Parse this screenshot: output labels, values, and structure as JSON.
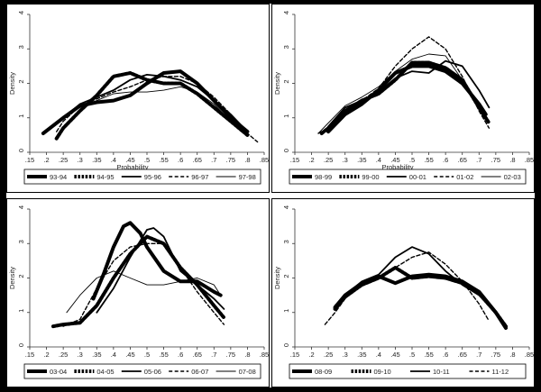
{
  "chart_data": [
    {
      "type": "line",
      "xlabel": "Probability",
      "ylabel": "Density",
      "xticks": [
        ".15",
        ".2",
        ".25",
        ".3",
        ".35",
        ".4",
        ".45",
        ".5",
        ".55",
        ".6",
        ".65",
        ".7",
        ".75",
        ".8",
        ".85"
      ],
      "yticks": [
        "0",
        "1",
        "2",
        "3",
        "4"
      ],
      "xlim": [
        0.15,
        0.85
      ],
      "ylim": [
        0,
        4
      ],
      "legend_position": "bottom",
      "series": [
        {
          "name": "93-94",
          "style": "thick-solid",
          "x": [
            0.19,
            0.25,
            0.3,
            0.35,
            0.4,
            0.45,
            0.5,
            0.55,
            0.6,
            0.65,
            0.7,
            0.75,
            0.8
          ],
          "y": [
            0.55,
            1.0,
            1.35,
            1.45,
            1.5,
            1.65,
            2.0,
            2.3,
            2.35,
            2.0,
            1.5,
            1.0,
            0.6
          ]
        },
        {
          "name": "94-95",
          "style": "thick-dotted",
          "x": [
            0.23,
            0.25,
            0.3,
            0.35,
            0.4,
            0.45,
            0.5,
            0.55,
            0.6,
            0.65,
            0.7,
            0.75,
            0.8
          ],
          "y": [
            0.4,
            0.7,
            1.2,
            1.65,
            2.2,
            2.3,
            2.1,
            2.0,
            2.0,
            1.7,
            1.3,
            0.9,
            0.5
          ]
        },
        {
          "name": "95-96",
          "style": "solid",
          "x": [
            0.2,
            0.25,
            0.3,
            0.35,
            0.4,
            0.45,
            0.5,
            0.55,
            0.6,
            0.65,
            0.7,
            0.75,
            0.8
          ],
          "y": [
            0.6,
            1.0,
            1.4,
            1.6,
            1.8,
            2.1,
            2.25,
            2.2,
            2.1,
            1.9,
            1.5,
            1.1,
            0.6
          ]
        },
        {
          "name": "96-97",
          "style": "dashed",
          "x": [
            0.23,
            0.25,
            0.3,
            0.35,
            0.4,
            0.45,
            0.5,
            0.55,
            0.6,
            0.65,
            0.7,
            0.75,
            0.8,
            0.83
          ],
          "y": [
            0.6,
            0.9,
            1.35,
            1.55,
            1.75,
            1.9,
            2.1,
            2.2,
            2.2,
            2.0,
            1.6,
            1.1,
            0.55,
            0.3
          ]
        },
        {
          "name": "97-98",
          "style": "thin",
          "x": [
            0.2,
            0.25,
            0.3,
            0.35,
            0.4,
            0.45,
            0.5,
            0.55,
            0.6,
            0.65,
            0.7,
            0.75,
            0.8
          ],
          "y": [
            0.6,
            1.0,
            1.3,
            1.5,
            1.7,
            1.75,
            1.75,
            1.8,
            1.9,
            1.75,
            1.4,
            0.9,
            0.55
          ]
        }
      ]
    },
    {
      "type": "line",
      "xlabel": "Probability",
      "ylabel": "Density",
      "xticks": [
        ".15",
        ".2",
        ".25",
        ".3",
        ".35",
        ".4",
        ".45",
        ".5",
        ".55",
        ".6",
        ".65",
        ".7",
        ".75",
        ".8",
        ".85"
      ],
      "yticks": [
        "0",
        "1",
        "2",
        "3",
        "4"
      ],
      "xlim": [
        0.15,
        0.85
      ],
      "ylim": [
        0,
        4
      ],
      "legend_position": "bottom",
      "series": [
        {
          "name": "98-99",
          "style": "thick-solid",
          "x": [
            0.25,
            0.3,
            0.35,
            0.4,
            0.45,
            0.5,
            0.55,
            0.6,
            0.65,
            0.7,
            0.72
          ],
          "y": [
            0.6,
            1.1,
            1.4,
            1.8,
            2.3,
            2.5,
            2.5,
            2.35,
            2.0,
            1.4,
            1.1
          ]
        },
        {
          "name": "99-00",
          "style": "thick-dotted",
          "x": [
            0.23,
            0.25,
            0.3,
            0.35,
            0.4,
            0.45,
            0.5,
            0.55,
            0.6,
            0.65,
            0.7,
            0.73
          ],
          "y": [
            0.55,
            0.7,
            1.2,
            1.5,
            1.7,
            2.1,
            2.6,
            2.6,
            2.45,
            2.1,
            1.3,
            0.85
          ]
        },
        {
          "name": "00-01",
          "style": "solid",
          "x": [
            0.25,
            0.3,
            0.35,
            0.4,
            0.45,
            0.5,
            0.55,
            0.6,
            0.65,
            0.7,
            0.73
          ],
          "y": [
            0.75,
            1.3,
            1.5,
            1.75,
            2.15,
            2.35,
            2.3,
            2.65,
            2.5,
            1.8,
            1.3
          ]
        },
        {
          "name": "01-02",
          "style": "dashed",
          "x": [
            0.22,
            0.25,
            0.3,
            0.35,
            0.4,
            0.45,
            0.5,
            0.55,
            0.6,
            0.65,
            0.7,
            0.73
          ],
          "y": [
            0.55,
            0.7,
            1.3,
            1.5,
            1.85,
            2.5,
            3.0,
            3.35,
            3.0,
            2.2,
            1.2,
            0.7
          ]
        },
        {
          "name": "02-03",
          "style": "thin",
          "x": [
            0.22,
            0.25,
            0.3,
            0.35,
            0.4,
            0.45,
            0.5,
            0.55,
            0.6,
            0.65,
            0.7,
            0.73
          ],
          "y": [
            0.55,
            0.85,
            1.35,
            1.6,
            1.9,
            2.35,
            2.7,
            2.85,
            2.8,
            2.1,
            1.3,
            0.9
          ]
        }
      ]
    },
    {
      "type": "line",
      "xlabel": "",
      "ylabel": "Density",
      "xticks": [
        ".15",
        ".2",
        ".25",
        ".3",
        ".35",
        ".4",
        ".45",
        ".5",
        ".55",
        ".6",
        ".65",
        ".7",
        ".75",
        ".8",
        ".85"
      ],
      "yticks": [
        "0",
        "1",
        "2",
        "3",
        "4"
      ],
      "xlim": [
        0.15,
        0.85
      ],
      "ylim": [
        0,
        4
      ],
      "legend_position": "bottom",
      "series": [
        {
          "name": "03-04",
          "style": "thick-solid",
          "x": [
            0.34,
            0.37,
            0.4,
            0.43,
            0.45,
            0.48,
            0.5,
            0.55,
            0.6,
            0.65,
            0.7,
            0.72
          ],
          "y": [
            1.4,
            2.1,
            2.9,
            3.5,
            3.6,
            3.3,
            2.9,
            2.2,
            1.9,
            1.9,
            1.6,
            1.5
          ]
        },
        {
          "name": "04-05",
          "style": "thick-dotted",
          "x": [
            0.22,
            0.25,
            0.3,
            0.35,
            0.4,
            0.45,
            0.5,
            0.55,
            0.6,
            0.65,
            0.7,
            0.73
          ],
          "y": [
            0.6,
            0.65,
            0.7,
            1.2,
            2.0,
            2.7,
            3.2,
            3.0,
            2.3,
            1.8,
            1.2,
            0.85
          ]
        },
        {
          "name": "05-06",
          "style": "solid",
          "x": [
            0.35,
            0.4,
            0.45,
            0.5,
            0.52,
            0.55,
            0.6,
            0.65,
            0.7,
            0.73
          ],
          "y": [
            1.0,
            1.7,
            2.6,
            3.4,
            3.45,
            3.2,
            2.2,
            1.8,
            1.4,
            1.1
          ]
        },
        {
          "name": "06-07",
          "style": "dashed",
          "x": [
            0.25,
            0.3,
            0.35,
            0.4,
            0.45,
            0.5,
            0.55,
            0.6,
            0.65,
            0.7,
            0.73
          ],
          "y": [
            0.6,
            0.8,
            1.7,
            2.5,
            2.9,
            3.0,
            3.0,
            2.3,
            1.6,
            1.0,
            0.65
          ]
        },
        {
          "name": "07-08",
          "style": "thin",
          "x": [
            0.26,
            0.3,
            0.35,
            0.4,
            0.45,
            0.5,
            0.55,
            0.6,
            0.65,
            0.7,
            0.72
          ],
          "y": [
            1.0,
            1.5,
            2.0,
            2.2,
            2.0,
            1.8,
            1.8,
            1.9,
            2.0,
            1.8,
            1.5
          ]
        }
      ]
    },
    {
      "type": "line",
      "xlabel": "",
      "ylabel": "Density",
      "xticks": [
        ".15",
        ".2",
        ".25",
        ".3",
        ".35",
        ".4",
        ".45",
        ".5",
        ".55",
        ".6",
        ".65",
        ".7",
        ".75",
        ".8",
        ".85"
      ],
      "yticks": [
        "0",
        "1",
        "2",
        "3",
        "4"
      ],
      "xlim": [
        0.15,
        0.85
      ],
      "ylim": [
        0,
        4
      ],
      "legend_position": "bottom",
      "series": [
        {
          "name": "08-09",
          "style": "thick-solid",
          "x": [
            0.27,
            0.3,
            0.35,
            0.4,
            0.45,
            0.5,
            0.55,
            0.6,
            0.65,
            0.7,
            0.75,
            0.78
          ],
          "y": [
            1.15,
            1.5,
            1.85,
            2.05,
            1.85,
            2.05,
            2.1,
            2.05,
            1.9,
            1.6,
            1.0,
            0.55
          ]
        },
        {
          "name": "09-10",
          "style": "thick-dotted",
          "x": [
            0.27,
            0.3,
            0.35,
            0.4,
            0.45,
            0.5,
            0.55,
            0.6,
            0.65,
            0.7,
            0.75,
            0.78
          ],
          "y": [
            1.1,
            1.45,
            1.8,
            2.0,
            2.3,
            2.0,
            2.05,
            2.0,
            1.85,
            1.55,
            1.0,
            0.6
          ]
        },
        {
          "name": "10-11",
          "style": "solid",
          "x": [
            0.27,
            0.3,
            0.35,
            0.4,
            0.45,
            0.5,
            0.55,
            0.6,
            0.65,
            0.7,
            0.72
          ],
          "y": [
            1.2,
            1.5,
            1.9,
            2.1,
            2.6,
            2.9,
            2.7,
            2.2,
            1.8,
            1.5,
            1.3
          ]
        },
        {
          "name": "11-12",
          "style": "dashed",
          "x": [
            0.24,
            0.27,
            0.3,
            0.35,
            0.4,
            0.45,
            0.5,
            0.55,
            0.6,
            0.65,
            0.7,
            0.73
          ],
          "y": [
            0.65,
            1.0,
            1.4,
            1.85,
            2.0,
            2.3,
            2.6,
            2.75,
            2.4,
            1.9,
            1.25,
            0.75
          ]
        }
      ]
    }
  ]
}
